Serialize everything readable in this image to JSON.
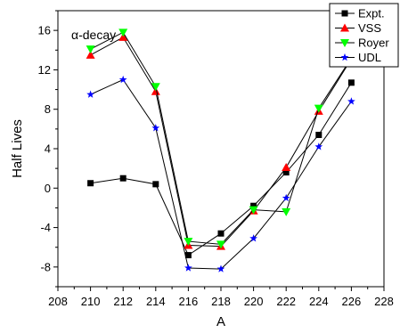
{
  "chart_data": {
    "type": "line",
    "annotation": "α-decay",
    "xlabel": "A",
    "ylabel": "Half Lives",
    "xlim": [
      208,
      228
    ],
    "ylim": [
      -10,
      18
    ],
    "xticks": [
      208,
      210,
      212,
      214,
      216,
      218,
      220,
      222,
      224,
      226,
      228
    ],
    "yticks": [
      -8,
      -4,
      0,
      4,
      8,
      12,
      16
    ],
    "legend_position": "top-right",
    "grid": false,
    "x": [
      210,
      212,
      214,
      216,
      218,
      220,
      222,
      224,
      226
    ],
    "series": [
      {
        "name": "Expt.",
        "marker": "square",
        "color": "#000000",
        "values": [
          0.5,
          1.0,
          0.4,
          -6.8,
          -4.6,
          -1.8,
          1.6,
          5.4,
          10.7
        ]
      },
      {
        "name": "VSS",
        "marker": "triangle-up",
        "color": "#ff0000",
        "values": [
          13.5,
          15.3,
          9.8,
          -5.8,
          -5.9,
          -2.3,
          2.1,
          7.8,
          13.1
        ]
      },
      {
        "name": "Royer",
        "marker": "triangle-down",
        "color": "#00ff00",
        "values": [
          14.1,
          15.8,
          10.3,
          -5.4,
          -5.7,
          -2.2,
          -2.4,
          8.1,
          13.2
        ]
      },
      {
        "name": "UDL",
        "marker": "star",
        "color": "#0000ff",
        "values": [
          9.5,
          11.0,
          6.1,
          -8.1,
          -8.2,
          -5.1,
          -1.0,
          4.2,
          8.8
        ]
      }
    ]
  }
}
